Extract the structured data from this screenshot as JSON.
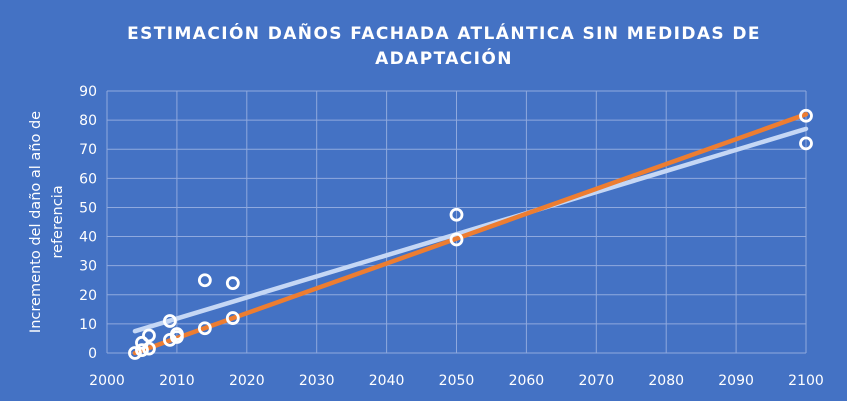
{
  "chart_data": {
    "type": "scatter",
    "title": [
      "ESTIMACIÓN DAÑOS FACHADA ATLÁNTICA SIN MEDIDAS DE",
      "ADAPTACIÓN"
    ],
    "xlabel": "",
    "ylabel": [
      "Incremento del daño al año de",
      "referencia"
    ],
    "xlim": [
      2000,
      2100
    ],
    "ylim": [
      0,
      90
    ],
    "x_ticks": [
      2000,
      2010,
      2020,
      2030,
      2040,
      2050,
      2060,
      2070,
      2080,
      2090,
      2100
    ],
    "y_ticks": [
      0,
      10,
      20,
      30,
      40,
      50,
      60,
      70,
      80,
      90
    ],
    "grid": true,
    "legend": "none",
    "colors": {
      "background": "#4472c4",
      "grid": "#8fa9de",
      "marker": "#ffffff",
      "trend_light": "#c5d7f5",
      "trend_orange": "#ed7d31"
    },
    "series": [
      {
        "points": [
          [
            2005,
            3.5
          ],
          [
            2006,
            6
          ],
          [
            2009,
            11
          ],
          [
            2010,
            6.5
          ],
          [
            2014,
            25
          ],
          [
            2018,
            24
          ],
          [
            2050,
            47.5
          ],
          [
            2100,
            72
          ]
        ],
        "trendline": {
          "x": [
            2004,
            2100
          ],
          "y": [
            7.5,
            77
          ],
          "color": "#c5d7f5"
        }
      },
      {
        "points": [
          [
            2004,
            0
          ],
          [
            2005,
            1
          ],
          [
            2006,
            1.5
          ],
          [
            2009,
            4.5
          ],
          [
            2010,
            5.5
          ],
          [
            2014,
            8.5
          ],
          [
            2018,
            12
          ],
          [
            2050,
            39
          ],
          [
            2100,
            81.5
          ]
        ],
        "trendline": {
          "x": [
            2004,
            2100
          ],
          "y": [
            0,
            82
          ],
          "color": "#ed7d31"
        }
      }
    ]
  }
}
